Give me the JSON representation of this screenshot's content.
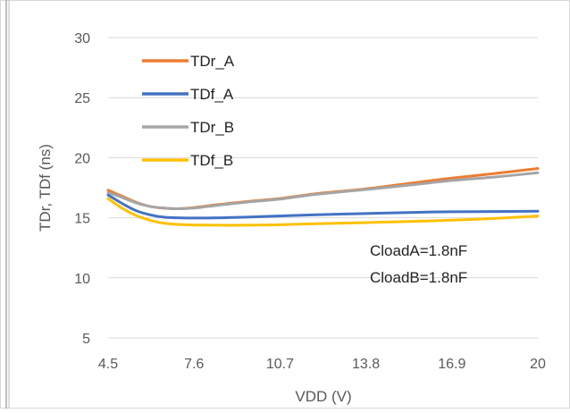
{
  "chart_data": {
    "type": "line",
    "title": "",
    "xlabel": "VDD (V)",
    "ylabel": "TDr, TDf (ns)",
    "xlim": [
      4.5,
      20
    ],
    "ylim": [
      5,
      30
    ],
    "xticks": [
      "4.5",
      "7.6",
      "10.7",
      "13.8",
      "16.9",
      "20"
    ],
    "yticks": [
      "5",
      "10",
      "15",
      "20",
      "25",
      "30"
    ],
    "grid": "horizontal",
    "legend_position": "top-left",
    "annotations": [
      "CloadA=1.8nF",
      "CloadB=1.8nF"
    ],
    "series": [
      {
        "name": "TDr_A",
        "color": "#ED7D31",
        "x": [
          4.5,
          5,
          5.5,
          6,
          6.5,
          7,
          7.6,
          8.5,
          9.5,
          10.7,
          12,
          13.8,
          15.5,
          16.9,
          18.5,
          20
        ],
        "y": [
          17.3,
          16.8,
          16.3,
          15.95,
          15.8,
          15.75,
          15.85,
          16.1,
          16.35,
          16.6,
          17.0,
          17.4,
          17.9,
          18.3,
          18.7,
          19.1
        ]
      },
      {
        "name": "TDf_A",
        "color": "#4472C4",
        "x": [
          4.5,
          5,
          5.5,
          6,
          6.5,
          7,
          7.6,
          8.5,
          9.5,
          10.7,
          12,
          13.8,
          15.5,
          16.9,
          18.5,
          20
        ],
        "y": [
          16.9,
          16.2,
          15.6,
          15.25,
          15.05,
          15.0,
          14.98,
          15.0,
          15.05,
          15.15,
          15.25,
          15.35,
          15.45,
          15.5,
          15.52,
          15.55
        ]
      },
      {
        "name": "TDr_B",
        "color": "#A5A5A5",
        "x": [
          4.5,
          5,
          5.5,
          6,
          6.5,
          7,
          7.6,
          8.5,
          9.5,
          10.7,
          12,
          13.8,
          15.5,
          16.9,
          18.5,
          20
        ],
        "y": [
          17.1,
          16.7,
          16.25,
          15.95,
          15.8,
          15.75,
          15.8,
          16.05,
          16.3,
          16.55,
          16.95,
          17.35,
          17.75,
          18.1,
          18.4,
          18.75
        ]
      },
      {
        "name": "TDf_B",
        "color": "#FFC000",
        "x": [
          4.5,
          5,
          5.5,
          6,
          6.5,
          7,
          7.6,
          8.5,
          9.5,
          10.7,
          12,
          13.8,
          15.5,
          16.9,
          18.5,
          20
        ],
        "y": [
          16.6,
          15.8,
          15.2,
          14.8,
          14.55,
          14.45,
          14.4,
          14.38,
          14.38,
          14.42,
          14.5,
          14.6,
          14.7,
          14.8,
          14.95,
          15.15
        ]
      }
    ]
  }
}
